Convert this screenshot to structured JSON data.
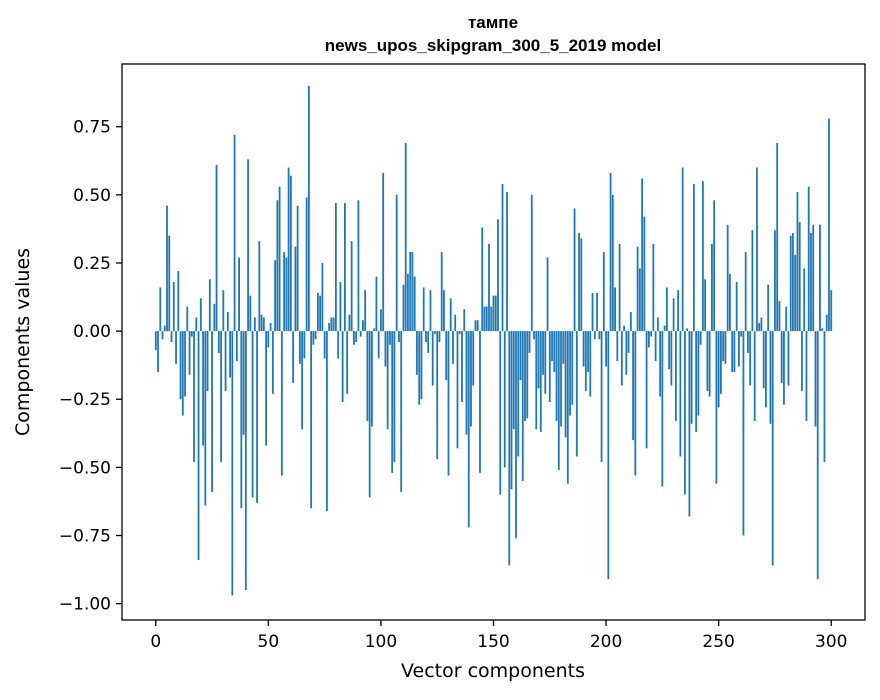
{
  "chart_data": {
    "type": "bar",
    "title_line1": "тампе",
    "title_line2": "news_upos_skipgram_300_5_2019 model",
    "xlabel": "Vector components",
    "ylabel": "Components values",
    "xlim": [
      -15,
      315
    ],
    "ylim": [
      -1.06,
      0.98
    ],
    "xticks": [
      0,
      50,
      100,
      150,
      200,
      250,
      300
    ],
    "yticks": [
      -1.0,
      -0.75,
      -0.5,
      -0.25,
      0.0,
      0.25,
      0.5,
      0.75
    ],
    "bar_color": "#1f77b4",
    "grid": false,
    "legend": "none",
    "values": [
      -0.07,
      -0.15,
      0.16,
      -0.03,
      0.02,
      0.46,
      0.35,
      -0.04,
      0.18,
      -0.12,
      0.22,
      -0.25,
      -0.31,
      -0.24,
      0.09,
      -0.16,
      -0.02,
      -0.48,
      0.05,
      -0.84,
      0.12,
      -0.42,
      -0.64,
      -0.22,
      0.19,
      -0.59,
      0.1,
      0.61,
      -0.08,
      -0.48,
      0.15,
      -0.22,
      0.07,
      -0.17,
      -0.97,
      0.72,
      -0.11,
      0.27,
      -0.65,
      -0.38,
      -0.95,
      0.63,
      0.13,
      -0.61,
      0.05,
      -0.63,
      0.33,
      0.06,
      0.05,
      -0.42,
      -0.06,
      0.03,
      -0.23,
      0.26,
      0.48,
      0.53,
      -0.53,
      0.29,
      0.27,
      0.6,
      0.57,
      -0.19,
      0.31,
      0.46,
      -0.12,
      -0.36,
      -0.1,
      0.49,
      0.9,
      -0.65,
      -0.05,
      -0.03,
      0.14,
      0.13,
      0.25,
      -0.1,
      -0.66,
      0.03,
      0.05,
      0.05,
      0.47,
      -0.1,
      0.18,
      -0.26,
      0.47,
      -0.23,
      0.06,
      0.33,
      -0.05,
      -0.04,
      0.48,
      -0.02,
      0.04,
      0.15,
      -0.33,
      -0.61,
      -0.35,
      0.01,
      0.2,
      -0.1,
      0.08,
      0.58,
      -0.13,
      -0.36,
      -0.05,
      -0.52,
      -0.48,
      0.5,
      -0.04,
      -0.59,
      0.17,
      0.69,
      0.21,
      0.29,
      0.29,
      0.2,
      -0.16,
      -0.27,
      -0.25,
      0.16,
      -0.04,
      -0.08,
      0.15,
      -0.2,
      -0.01,
      -0.47,
      -0.04,
      0.29,
      0.15,
      -0.18,
      -0.53,
      0.12,
      -0.12,
      0.06,
      -0.43,
      -0.01,
      -0.26,
      0.08,
      -0.38,
      -0.72,
      -0.35,
      -0.2,
      0.04,
      0.04,
      -0.52,
      0.38,
      0.09,
      0.09,
      0.32,
      0.09,
      0.13,
      0.13,
      0.41,
      -0.6,
      0.54,
      -0.5,
      0.51,
      -0.86,
      -0.58,
      -0.36,
      -0.76,
      -0.46,
      -0.18,
      -0.55,
      -0.33,
      -0.32,
      -0.08,
      0.5,
      -0.03,
      -0.36,
      -0.21,
      -0.37,
      -0.16,
      -0.23,
      0.27,
      -0.26,
      -0.11,
      -0.15,
      -0.33,
      -0.51,
      -0.35,
      -0.12,
      -0.39,
      -0.56,
      -0.31,
      -0.27,
      0.45,
      -0.46,
      0.36,
      0.34,
      -0.13,
      -0.22,
      -0.15,
      -0.24,
      0.14,
      -0.03,
      0.14,
      -0.03,
      -0.48,
      0.29,
      -0.13,
      -0.91,
      0.58,
      0.5,
      0.16,
      -0.11,
      0.32,
      -0.2,
      0.02,
      -0.16,
      -0.08,
      0.07,
      -0.4,
      -0.53,
      0.31,
      0.23,
      0.56,
      0.42,
      -0.43,
      -0.06,
      -0.02,
      0.32,
      -0.11,
      0.05,
      -0.24,
      -0.57,
      0.02,
      0.16,
      -0.14,
      -0.2,
      0.12,
      -0.33,
      0.15,
      -0.46,
      0.6,
      -0.6,
      0.01,
      -0.68,
      -0.34,
      0.54,
      -0.37,
      -0.31,
      -0.05,
      0.55,
      0.19,
      -0.22,
      -0.24,
      0.32,
      0.48,
      -0.56,
      -0.28,
      -0.23,
      -0.11,
      -0.12,
      0.39,
      0.21,
      -0.15,
      -0.15,
      0.18,
      -0.13,
      -0.02,
      -0.75,
      0.29,
      -0.08,
      -0.2,
      0.37,
      -0.33,
      0.6,
      0.03,
      0.05,
      -0.21,
      -0.28,
      0.17,
      -0.34,
      -0.86,
      0.37,
      0.69,
      0.11,
      -0.19,
      -0.27,
      0.09,
      -0.2,
      0.35,
      0.36,
      0.28,
      0.51,
      0.4,
      -0.22,
      0.23,
      -0.33,
      0.53,
      0.36,
      0.39,
      -0.35,
      -0.91,
      0.39,
      0.01,
      -0.48,
      0.06,
      0.78,
      0.15
    ]
  }
}
